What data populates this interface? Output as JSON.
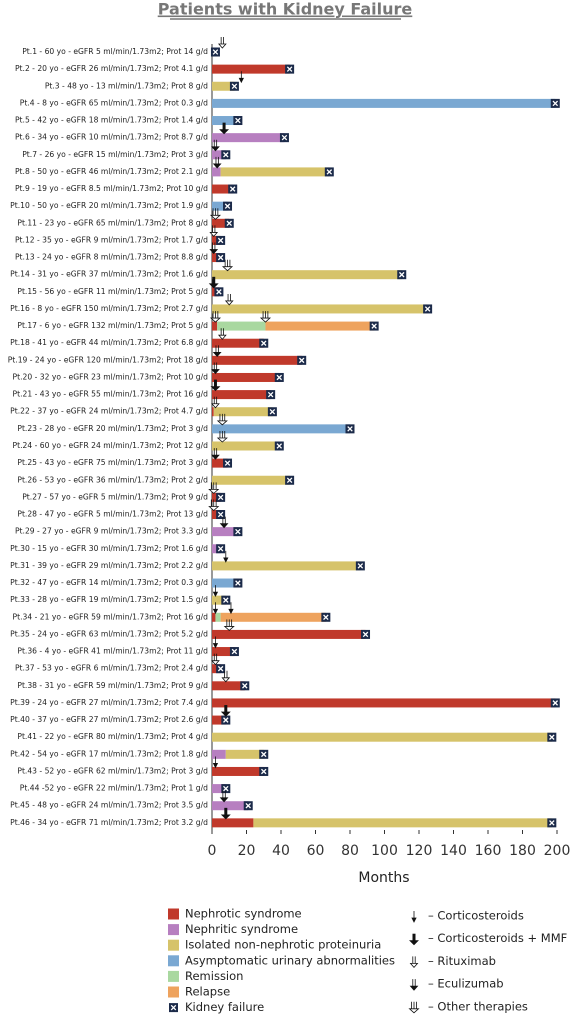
{
  "chart_data": {
    "type": "swimmer",
    "title": "Patients with Kidney Failure",
    "x_label": "Months",
    "xlim": [
      0,
      200
    ],
    "xticks": [
      0,
      20,
      40,
      60,
      80,
      100,
      120,
      140,
      160,
      180,
      200
    ],
    "statuses": [
      {
        "name": "Nephrotic syndrome",
        "color": "#c0392b"
      },
      {
        "name": "Nephritic syndrome",
        "color": "#b77fc0"
      },
      {
        "name": "Isolated non-nephrotic proteinuria",
        "color": "#d6c36a"
      },
      {
        "name": "Asymptomatic urinary abnormalities",
        "color": "#7aa8d2"
      },
      {
        "name": "Remission",
        "color": "#a9d8a0"
      },
      {
        "name": "Relapse",
        "color": "#eea35e"
      }
    ],
    "failure_name": "Kidney failure",
    "treatments": [
      "– Corticosteroids",
      "– Corticosteroids + MMF",
      "– Rituximab",
      "– Eculizumab",
      "– Other therapies"
    ],
    "patients": [
      {
        "label": "Pt.1 - 60 yo - eGFR 5 ml/min/1.73m2; Prot 14 g/d",
        "segments": [
          [
            0,
            0,
            2
          ]
        ],
        "failure": 2,
        "events": [
          [
            2,
            6
          ]
        ]
      },
      {
        "label": "Pt.2 - 20 yo - eGFR 26 ml/min/1.73m2; Prot 4.1 g/d",
        "segments": [
          [
            0,
            0,
            45
          ]
        ],
        "failure": 45,
        "events": []
      },
      {
        "label": "Pt.3 - 48 yo - 13 ml/min/1.73m2; Prot 8 g/d",
        "segments": [
          [
            2,
            0,
            13
          ]
        ],
        "failure": 13,
        "events": [
          [
            0,
            17
          ]
        ]
      },
      {
        "label": "Pt.4 - 8 yo - eGFR 65 ml/min/1.73m2; Prot 0.3 g/d",
        "segments": [
          [
            3,
            0,
            199
          ]
        ],
        "failure": 199,
        "events": []
      },
      {
        "label": "Pt.5 - 42 yo - eGFR 18 ml/min/1.73m2; Prot 1.4 g/d",
        "segments": [
          [
            3,
            0,
            15
          ]
        ],
        "failure": 15,
        "events": []
      },
      {
        "label": "Pt.6 - 34 yo - eGFR 10 ml/min/1.73m2; Prot 8.7 g/d",
        "segments": [
          [
            1,
            0,
            42
          ]
        ],
        "failure": 42,
        "events": [
          [
            1,
            7
          ]
        ]
      },
      {
        "label": "Pt.7 - 26 yo - eGFR 15 ml/min/1.73m2; Prot 3 g/d",
        "segments": [
          [
            1,
            0,
            8
          ]
        ],
        "failure": 8,
        "events": [
          [
            3,
            2
          ]
        ]
      },
      {
        "label": "Pt.8 - 50 yo - eGFR 46 ml/min/1.73m2; Prot 2.1 g/d",
        "segments": [
          [
            1,
            0,
            5
          ],
          [
            2,
            5,
            68
          ]
        ],
        "failure": 68,
        "events": [
          [
            3,
            3
          ]
        ]
      },
      {
        "label": "Pt.9 - 19 yo - eGFR 8.5 ml/min/1.73m2; Prot 10 g/d",
        "segments": [
          [
            0,
            0,
            12
          ]
        ],
        "failure": 12,
        "events": []
      },
      {
        "label": "Pt.10 - 50 yo - eGFR 20 ml/min/1.73m2; Prot 1.9 g/d",
        "segments": [
          [
            3,
            0,
            9
          ]
        ],
        "failure": 9,
        "events": []
      },
      {
        "label": "Pt.11 - 23 yo - eGFR 65 ml/min/1.73m2; Prot 8 g/d",
        "segments": [
          [
            0,
            0,
            10
          ]
        ],
        "failure": 10,
        "events": [
          [
            4,
            2
          ]
        ]
      },
      {
        "label": "Pt.12 - 35 yo - eGFR 9 ml/min/1.73m2; Prot 1.7 g/d",
        "segments": [
          [
            0,
            0,
            5
          ]
        ],
        "failure": 5,
        "events": [
          [
            2,
            1
          ]
        ]
      },
      {
        "label": "Pt.13 - 24 yo - eGFR 8 ml/min/1.73m2; Prot 8.8 g/d",
        "segments": [
          [
            0,
            0,
            5
          ]
        ],
        "failure": 5,
        "events": [
          [
            3,
            1
          ]
        ]
      },
      {
        "label": "Pt.14 - 31 yo - eGFR 37 ml/min/1.73m2; Prot 1.6 g/d",
        "segments": [
          [
            2,
            0,
            110
          ]
        ],
        "failure": 110,
        "events": [
          [
            4,
            9
          ]
        ]
      },
      {
        "label": "Pt.15 - 56 yo - eGFR 11 ml/min/1.73m2; Prot 5 g/d",
        "segments": [
          [
            0,
            0,
            4
          ]
        ],
        "failure": 4,
        "events": [
          [
            1,
            1
          ]
        ]
      },
      {
        "label": "Pt.16 - 8 yo - eGFR 150 ml/min/1.73m2; Prot 2.7 g/d",
        "segments": [
          [
            2,
            0,
            125
          ]
        ],
        "failure": 125,
        "events": [
          [
            2,
            10
          ]
        ]
      },
      {
        "label": "Pt.17 - 6 yo - eGFR 132 ml/min/1.73m2; Prot 5 g/d",
        "segments": [
          [
            0,
            0,
            3
          ],
          [
            4,
            3,
            31
          ],
          [
            5,
            31,
            94
          ]
        ],
        "failure": 94,
        "events": [
          [
            4,
            2
          ],
          [
            4,
            31
          ]
        ]
      },
      {
        "label": "Pt.18 - 41 yo - eGFR 44 ml/min/1.73m2; Prot 6.8 g/d",
        "segments": [
          [
            0,
            0,
            30
          ]
        ],
        "failure": 30,
        "events": [
          [
            2,
            6
          ]
        ]
      },
      {
        "label": "Pt.19 - 24 yo - eGFR 120 ml/min/1.73m2; Prot 18 g/d",
        "segments": [
          [
            0,
            0,
            52
          ]
        ],
        "failure": 52,
        "events": [
          [
            3,
            3
          ]
        ]
      },
      {
        "label": "Pt.20 - 32 yo - eGFR 23 ml/min/1.73m2; Prot 10 g/d",
        "segments": [
          [
            0,
            0,
            39
          ]
        ],
        "failure": 39,
        "events": [
          [
            3,
            2
          ]
        ]
      },
      {
        "label": "Pt.21 - 43 yo - eGFR 55 ml/min/1.73m2; Prot 16 g/d",
        "segments": [
          [
            0,
            0,
            34
          ]
        ],
        "failure": 34,
        "events": [
          [
            1,
            2
          ]
        ]
      },
      {
        "label": "Pt.22 - 37 yo - eGFR 24 ml/min/1.73m2; Prot 4.7 g/d",
        "segments": [
          [
            0,
            0,
            1
          ],
          [
            2,
            1,
            35
          ]
        ],
        "failure": 35,
        "events": [
          [
            2,
            2
          ]
        ]
      },
      {
        "label": "Pt.23 - 28 yo - eGFR 20 ml/min/1.73m2; Prot 3 g/d",
        "segments": [
          [
            3,
            0,
            80
          ]
        ],
        "failure": 80,
        "events": [
          [
            4,
            6
          ]
        ]
      },
      {
        "label": "Pt.24 - 60 yo - eGFR 24 ml/min/1.73m2; Prot 12 g/d",
        "segments": [
          [
            2,
            0,
            39
          ]
        ],
        "failure": 39,
        "events": [
          [
            4,
            6
          ]
        ]
      },
      {
        "label": "Pt.25 - 43 yo - eGFR 75 ml/min/1.73m2; Prot 3 g/d",
        "segments": [
          [
            0,
            0,
            9
          ]
        ],
        "failure": 9,
        "events": [
          [
            3,
            2
          ]
        ]
      },
      {
        "label": "Pt.26 - 53 yo - eGFR 36 ml/min/1.73m2; Prot 2 g/d",
        "segments": [
          [
            2,
            0,
            45
          ]
        ],
        "failure": 45,
        "events": []
      },
      {
        "label": "Pt.27 - 57 yo - eGFR 5 ml/min/1.73m2; Prot 9 g/d",
        "segments": [
          [
            0,
            0,
            5
          ]
        ],
        "failure": 5,
        "events": [
          [
            4,
            1
          ]
        ]
      },
      {
        "label": "Pt.28 - 47 yo - eGFR 5 ml/min/1.73m2; Prot 13 g/d",
        "segments": [
          [
            0,
            0,
            5
          ]
        ],
        "failure": 5,
        "events": [
          [
            4,
            1
          ]
        ]
      },
      {
        "label": "Pt.29 - 27 yo - eGFR 9 ml/min/1.73m2; Prot 3.3 g/d",
        "segments": [
          [
            1,
            0,
            15
          ]
        ],
        "failure": 15,
        "events": [
          [
            3,
            7
          ]
        ]
      },
      {
        "label": "Pt.30 - 15 yo - eGFR 30 ml/min/1.73m2; Prot 1.6 g/d",
        "segments": [
          [
            1,
            0,
            5
          ]
        ],
        "failure": 5,
        "events": []
      },
      {
        "label": "Pt.31 - 39 yo - eGFR 29 ml/min/1.73m2; Prot 2.2 g/d",
        "segments": [
          [
            2,
            0,
            86
          ]
        ],
        "failure": 86,
        "events": [
          [
            0,
            8
          ]
        ]
      },
      {
        "label": "Pt.32 - 47 yo - eGFR 14 ml/min/1.73m2; Prot 0.3 g/d",
        "segments": [
          [
            3,
            0,
            15
          ]
        ],
        "failure": 15,
        "events": []
      },
      {
        "label": "Pt.33 - 28 yo - eGFR 19 ml/min/1.73m2; Prot 1.5 g/d",
        "segments": [
          [
            2,
            0,
            8
          ]
        ],
        "failure": 8,
        "events": [
          [
            0,
            2
          ]
        ]
      },
      {
        "label": "Pt.34 - 21 yo - eGFR 59 ml/min/1.73m2; Prot 16 g/d",
        "segments": [
          [
            0,
            0,
            2
          ],
          [
            4,
            2,
            5
          ],
          [
            5,
            5,
            66
          ]
        ],
        "failure": 66,
        "events": [
          [
            0,
            2
          ],
          [
            0,
            11
          ]
        ]
      },
      {
        "label": "Pt.35 - 24 yo - eGFR 63 ml/min/1.73m2; Prot 5.2 g/d",
        "segments": [
          [
            0,
            0,
            89
          ]
        ],
        "failure": 89,
        "events": [
          [
            4,
            10
          ]
        ]
      },
      {
        "label": "Pt.36 - 4 yo - eGFR 41 ml/min/1.73m2; Prot 11 g/d",
        "segments": [
          [
            0,
            0,
            13
          ]
        ],
        "failure": 13,
        "events": [
          [
            0,
            2
          ]
        ]
      },
      {
        "label": "Pt.37 - 53 yo - eGFR 6 ml/min/1.73m2; Prot 2.4 g/d",
        "segments": [
          [
            0,
            0,
            5
          ]
        ],
        "failure": 5,
        "events": [
          [
            2,
            2
          ]
        ]
      },
      {
        "label": "Pt.38 - 31 yo - eGFR 59 ml/min/1.73m2; Prot 9 g/d",
        "segments": [
          [
            0,
            0,
            19
          ]
        ],
        "failure": 19,
        "events": [
          [
            2,
            8
          ]
        ]
      },
      {
        "label": "Pt.39 - 24 yo - eGFR 27 ml/min/1.73m2; Prot 7.4 g/d",
        "segments": [
          [
            0,
            0,
            199
          ]
        ],
        "failure": 199,
        "events": []
      },
      {
        "label": "Pt.40 - 37 yo - eGFR 27 ml/min/1.73m2; Prot 2.6 g/d",
        "segments": [
          [
            0,
            0,
            8
          ]
        ],
        "failure": 8,
        "events": [
          [
            1,
            8
          ]
        ]
      },
      {
        "label": "Pt.41 - 22 yo - eGFR 80 ml/min/1.73m2; Prot 4 g/d",
        "segments": [
          [
            2,
            0,
            197
          ]
        ],
        "failure": 197,
        "events": []
      },
      {
        "label": "Pt.42 - 54 yo - eGFR 17 ml/min/1.73m2; Prot 1.8 g/d",
        "segments": [
          [
            1,
            0,
            8
          ],
          [
            2,
            8,
            30
          ]
        ],
        "failure": 30,
        "events": []
      },
      {
        "label": "Pt.43 - 52 yo - eGFR 62 ml/min/1.73m2; Prot 3 g/d",
        "segments": [
          [
            0,
            0,
            30
          ]
        ],
        "failure": 30,
        "events": [
          [
            0,
            2
          ]
        ]
      },
      {
        "label": "Pt.44 -52 yo - eGFR 22 ml/min/1.73m2; Prot 1 g/d",
        "segments": [
          [
            1,
            0,
            8
          ]
        ],
        "failure": 8,
        "events": []
      },
      {
        "label": "Pt.45 - 48 yo - eGFR 24 ml/min/1.73m2; Prot 3.5 g/d",
        "segments": [
          [
            1,
            0,
            21
          ]
        ],
        "failure": 21,
        "events": [
          [
            3,
            7
          ]
        ]
      },
      {
        "label": "Pt.46 - 34 yo - eGFR 71 ml/min/1.73m2; Prot 3.2 g/d",
        "segments": [
          [
            0,
            0,
            24
          ],
          [
            2,
            24,
            197
          ]
        ],
        "failure": 197,
        "events": [
          [
            1,
            8
          ]
        ]
      }
    ]
  }
}
